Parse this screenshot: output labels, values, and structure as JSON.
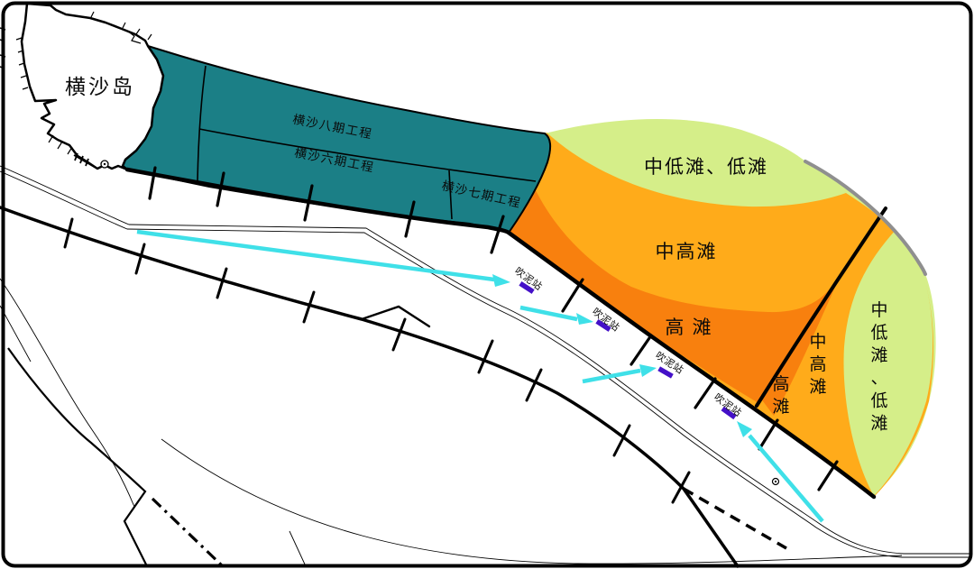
{
  "island": {
    "label": "横沙岛"
  },
  "reclamation": {
    "phase8": "横沙八期工程",
    "phase6": "横沙六期工程",
    "phase7": "横沙七期工程"
  },
  "tidal_flats": {
    "north_low": "中低滩、低滩",
    "mid_high": "中高滩",
    "high": "高 滩",
    "east_high": "高滩",
    "east_mid_high": "中高滩",
    "east_low": "中低滩、低滩"
  },
  "stations": {
    "label": "吹泥站"
  },
  "colors": {
    "reclaimed_teal": "#1b7f86",
    "low_flat_green": "#d5ee89",
    "mid_flat_orange": "#ffab1a",
    "high_flat_dark_orange": "#f8800e",
    "arrow_cyan": "#3fe0e8",
    "station_purple": "#4410c8",
    "outer_edge_gray": "#8f8f8f",
    "line_black": "#000000"
  }
}
